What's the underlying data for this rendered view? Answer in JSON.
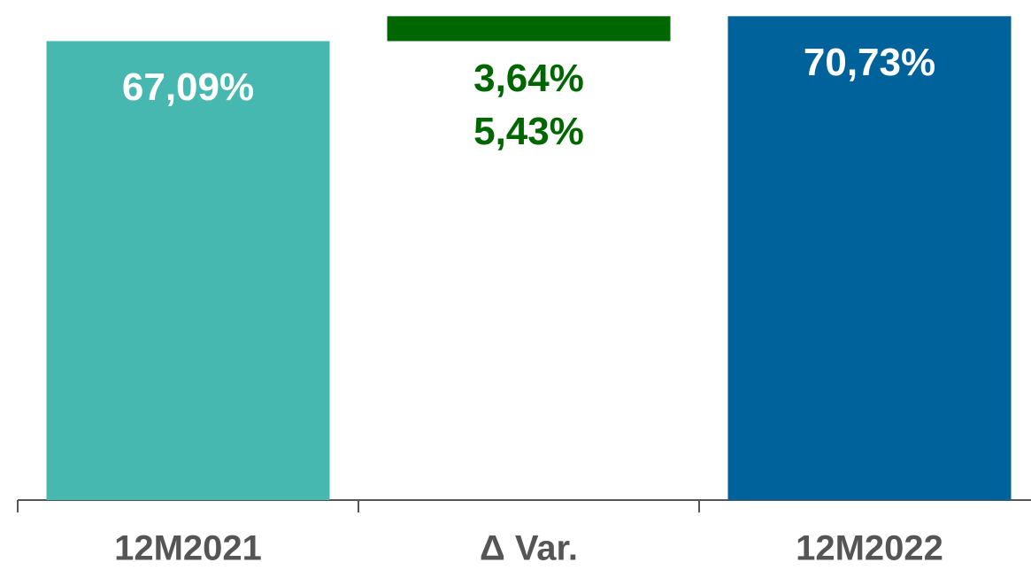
{
  "chart_data": {
    "type": "waterfall",
    "categories": [
      "12M2021",
      "Δ Var.",
      "12M2022"
    ],
    "measures": [
      "absolute",
      "relative",
      "total"
    ],
    "values": [
      67.09,
      3.64,
      70.73
    ],
    "value_labels": [
      "67,09%",
      "3,64%",
      "70,73%"
    ],
    "colors": [
      "#47b8b0",
      "#006600",
      "#00629b"
    ],
    "label_colors": [
      "#ffffff",
      "#006600",
      "#ffffff"
    ],
    "annotations": [
      {
        "text": "5,43%",
        "category": 1
      }
    ],
    "ylim": [
      0,
      72
    ]
  }
}
